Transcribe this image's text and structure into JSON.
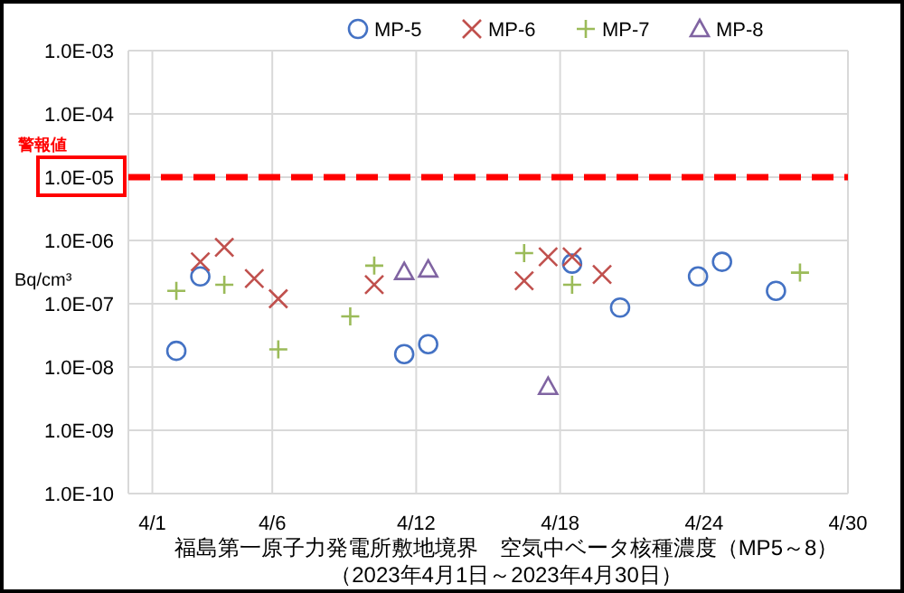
{
  "chart_data": {
    "type": "scatter",
    "xlabel": "福島第一原子力発電所敷地境界　空気中ベータ核種濃度（MP5～8）",
    "ylabel": "Bq/cm³",
    "annotations": [
      "（2023年4月1日～2023年4月30日）"
    ],
    "xlim": [
      "2023-03-31",
      "2023-04-30"
    ],
    "xticks": [
      {
        "value": "2023-04-01",
        "label": "4/1"
      },
      {
        "value": "2023-04-06",
        "label": "4/6"
      },
      {
        "value": "2023-04-12",
        "label": "4/12"
      },
      {
        "value": "2023-04-18",
        "label": "4/18"
      },
      {
        "value": "2023-04-24",
        "label": "4/24"
      },
      {
        "value": "2023-04-30",
        "label": "4/30"
      }
    ],
    "log": "y",
    "ylim": [
      1e-10,
      0.001
    ],
    "yticks": [
      {
        "value": 1e-10,
        "label": "1.0E-10"
      },
      {
        "value": 1e-09,
        "label": "1.0E-09"
      },
      {
        "value": 1e-08,
        "label": "1.0E-08"
      },
      {
        "value": 1e-07,
        "label": "1.0E-07"
      },
      {
        "value": 1e-06,
        "label": "1.0E-06"
      },
      {
        "value": 1e-05,
        "label": "1.0E-05"
      },
      {
        "value": 0.0001,
        "label": "1.0E-04"
      },
      {
        "value": 0.001,
        "label": "1.0E-03"
      }
    ],
    "grid": true,
    "legend": "top",
    "ref_lines": [
      {
        "axis": "y",
        "value": 1e-05,
        "label": "警報値",
        "color": "#ff0000",
        "line_style": "dashed"
      }
    ],
    "series": [
      {
        "name": "MP-5",
        "color": "#4472c4",
        "marker": "circle",
        "x": [
          "2023-04-02",
          "2023-04-03",
          "2023-04-11T12:00",
          "2023-04-12T12:00",
          "2023-04-18T12:00",
          "2023-04-20T12:00",
          "2023-04-23T18:00",
          "2023-04-24T18:00",
          "2023-04-27"
        ],
        "values": [
          1.8e-08,
          2.7e-07,
          1.6e-08,
          2.3e-08,
          4.3e-07,
          8.7e-08,
          2.7e-07,
          4.6e-07,
          1.6e-07
        ]
      },
      {
        "name": "MP-6",
        "color": "#c0504d",
        "marker": "x",
        "x": [
          "2023-04-03",
          "2023-04-04",
          "2023-04-05T06:00",
          "2023-04-06T06:00",
          "2023-04-10T06:00",
          "2023-04-16T12:00",
          "2023-04-17T12:00",
          "2023-04-18T12:00",
          "2023-04-19T18:00"
        ],
        "values": [
          4.6e-07,
          7.8e-07,
          2.5e-07,
          1.2e-07,
          2e-07,
          2.3e-07,
          5.5e-07,
          5.5e-07,
          2.9e-07
        ]
      },
      {
        "name": "MP-7",
        "color": "#9bbb59",
        "marker": "cross",
        "x": [
          "2023-04-02",
          "2023-04-04",
          "2023-04-06T06:00",
          "2023-04-09T06:00",
          "2023-04-10T06:00",
          "2023-04-16T12:00",
          "2023-04-18T12:00",
          "2023-04-28"
        ],
        "values": [
          1.6e-07,
          2e-07,
          1.9e-08,
          6.3e-08,
          4e-07,
          6.3e-07,
          2e-07,
          3.1e-07
        ]
      },
      {
        "name": "MP-8",
        "color": "#8064a2",
        "marker": "triangle",
        "x": [
          "2023-04-11T12:00",
          "2023-04-12T12:00",
          "2023-04-17T12:00"
        ],
        "values": [
          3.2e-07,
          3.5e-07,
          4.9e-09
        ]
      }
    ]
  }
}
